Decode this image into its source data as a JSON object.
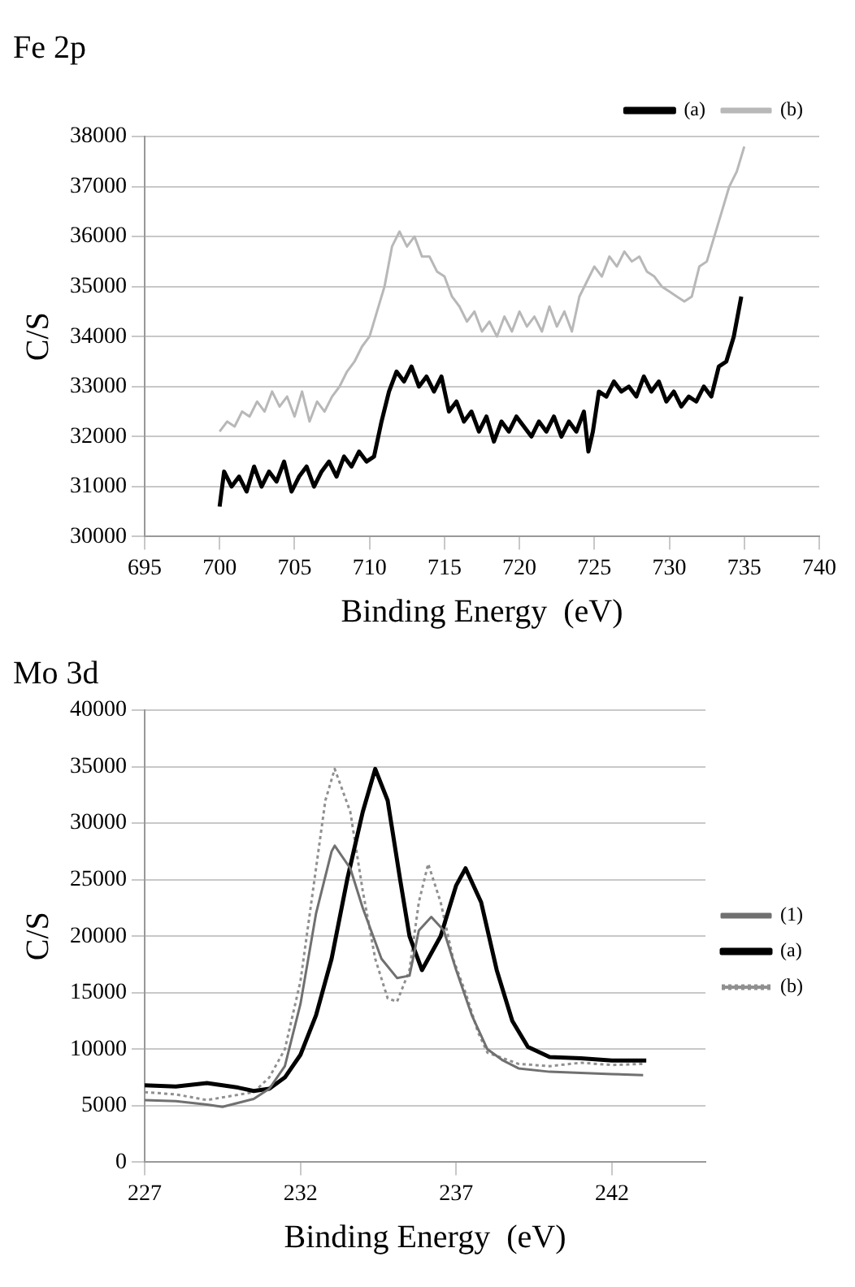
{
  "chart_data": [
    {
      "type": "line",
      "title": "Fe 2p",
      "xlabel": "Binding Energy  (eV)",
      "ylabel": "C/S",
      "xlim": [
        695,
        740
      ],
      "xticks": [
        695,
        700,
        705,
        710,
        715,
        720,
        725,
        730,
        735,
        740
      ],
      "ylim": [
        30000,
        38000
      ],
      "yticks": [
        30000,
        31000,
        32000,
        33000,
        34000,
        35000,
        36000,
        37000,
        38000
      ],
      "grid": "y",
      "legend": "top right",
      "marker": "none",
      "line_style": "solid",
      "series": [
        {
          "name": "(a)",
          "color": "#000000",
          "x": [
            700,
            700.3,
            700.8,
            701.3,
            701.8,
            702.3,
            702.8,
            703.3,
            703.8,
            704.3,
            704.8,
            705.3,
            705.8,
            706.3,
            706.8,
            707.3,
            707.8,
            708.3,
            708.8,
            709.3,
            709.8,
            710.3,
            710.8,
            711.3,
            711.8,
            712.3,
            712.8,
            713.3,
            713.8,
            714.3,
            714.8,
            715.3,
            715.8,
            716.3,
            716.8,
            717.3,
            717.8,
            718.3,
            718.8,
            719.3,
            719.8,
            720.3,
            720.8,
            721.3,
            721.8,
            722.3,
            722.8,
            723.3,
            723.8,
            724.3,
            724.6,
            724.9,
            725.3,
            725.8,
            726.3,
            726.8,
            727.3,
            727.8,
            728.3,
            728.8,
            729.3,
            729.8,
            730.3,
            730.8,
            731.3,
            731.8,
            732.3,
            732.8,
            733.3,
            733.8,
            734.3,
            734.8
          ],
          "values": [
            30600,
            31300,
            31000,
            31200,
            30900,
            31400,
            31000,
            31300,
            31100,
            31500,
            30900,
            31200,
            31400,
            31000,
            31300,
            31500,
            31200,
            31600,
            31400,
            31700,
            31500,
            31600,
            32300,
            32900,
            33300,
            33100,
            33400,
            33000,
            33200,
            32900,
            33200,
            32500,
            32700,
            32300,
            32500,
            32100,
            32400,
            31900,
            32300,
            32100,
            32400,
            32200,
            32000,
            32300,
            32100,
            32400,
            32000,
            32300,
            32100,
            32500,
            31700,
            32100,
            32900,
            32800,
            33100,
            32900,
            33000,
            32800,
            33200,
            32900,
            33100,
            32700,
            32900,
            32600,
            32800,
            32700,
            33000,
            32800,
            33400,
            33500,
            34000,
            34800
          ]
        },
        {
          "name": "(b)",
          "color": "#b8b8b8",
          "x": [
            700,
            700.5,
            701,
            701.5,
            702,
            702.5,
            703,
            703.5,
            704,
            704.5,
            705,
            705.5,
            706,
            706.5,
            707,
            707.5,
            708,
            708.5,
            709,
            709.5,
            710,
            710.5,
            711,
            711.5,
            712,
            712.5,
            713,
            713.5,
            714,
            714.5,
            715,
            715.5,
            716,
            716.5,
            717,
            717.5,
            718,
            718.5,
            719,
            719.5,
            720,
            720.5,
            721,
            721.5,
            722,
            722.5,
            723,
            723.5,
            724,
            724.5,
            725,
            725.5,
            726,
            726.5,
            727,
            727.5,
            728,
            728.5,
            729,
            729.5,
            730,
            730.5,
            731,
            731.5,
            732,
            732.5,
            733,
            733.5,
            734,
            734.5,
            735
          ],
          "values": [
            32100,
            32300,
            32200,
            32500,
            32400,
            32700,
            32500,
            32900,
            32600,
            32800,
            32400,
            32900,
            32300,
            32700,
            32500,
            32800,
            33000,
            33300,
            33500,
            33800,
            34000,
            34500,
            35000,
            35800,
            36100,
            35800,
            36000,
            35600,
            35600,
            35300,
            35200,
            34800,
            34600,
            34300,
            34500,
            34100,
            34300,
            34000,
            34400,
            34100,
            34500,
            34200,
            34400,
            34100,
            34600,
            34200,
            34500,
            34100,
            34800,
            35100,
            35400,
            35200,
            35600,
            35400,
            35700,
            35500,
            35600,
            35300,
            35200,
            35000,
            34900,
            34800,
            34700,
            34800,
            35400,
            35500,
            36000,
            36500,
            37000,
            37300,
            37800
          ]
        }
      ]
    },
    {
      "type": "line",
      "title": "Mo 3d",
      "xlabel": "Binding Energy  (eV)",
      "ylabel": "C/S",
      "xlim": [
        227,
        245
      ],
      "xticks": [
        227,
        232,
        237,
        242
      ],
      "ylim": [
        0,
        40000
      ],
      "yticks": [
        0,
        5000,
        10000,
        15000,
        20000,
        25000,
        30000,
        35000,
        40000
      ],
      "grid": "y",
      "legend": "right",
      "marker": "none",
      "series": [
        {
          "name": "(1)",
          "color": "#707070",
          "line_style": "solid",
          "x": [
            227,
            228,
            229,
            229.5,
            230.5,
            231,
            231.5,
            232,
            232.5,
            233,
            233.1,
            233.6,
            234,
            234.6,
            235.1,
            235.5,
            235.8,
            236.2,
            236.6,
            237,
            237.5,
            238,
            238.5,
            239,
            240,
            242,
            243
          ],
          "values": [
            5500,
            5400,
            5100,
            4900,
            5600,
            6500,
            8500,
            14000,
            22000,
            27500,
            28000,
            26000,
            22500,
            18000,
            16300,
            16500,
            20500,
            21700,
            20500,
            17000,
            13000,
            10000,
            9000,
            8300,
            8000,
            7800,
            7700
          ]
        },
        {
          "name": "(a)",
          "color": "#000000",
          "line_style": "solid",
          "x": [
            227,
            228,
            229,
            230,
            230.5,
            231,
            231.5,
            232,
            232.5,
            233,
            233.5,
            234,
            234.4,
            234.8,
            235.2,
            235.5,
            235.9,
            236.5,
            237,
            237.3,
            237.8,
            238.3,
            238.8,
            239.3,
            240,
            241,
            242,
            243.1
          ],
          "values": [
            6800,
            6700,
            7000,
            6600,
            6300,
            6500,
            7500,
            9500,
            13000,
            18000,
            25000,
            31000,
            34800,
            32000,
            25000,
            20000,
            17000,
            20000,
            24500,
            26000,
            23000,
            17000,
            12500,
            10200,
            9300,
            9200,
            9000,
            9000
          ]
        },
        {
          "name": "(b)",
          "color": "#909090",
          "line_style": "dotted",
          "x": [
            227,
            228,
            229,
            230.5,
            231,
            231.5,
            232,
            232.5,
            232.8,
            233.1,
            233.6,
            234,
            234.4,
            234.8,
            235.1,
            235.5,
            235.8,
            236.1,
            236.5,
            236.9,
            237.3,
            237.7,
            238,
            239,
            240,
            241,
            242,
            243
          ],
          "values": [
            6200,
            6000,
            5500,
            6200,
            7500,
            10000,
            16000,
            26000,
            32000,
            34800,
            31000,
            24000,
            18000,
            14500,
            14200,
            17000,
            23000,
            26400,
            23000,
            18000,
            15000,
            11500,
            9700,
            8700,
            8500,
            8800,
            8600,
            8700
          ]
        }
      ]
    }
  ]
}
